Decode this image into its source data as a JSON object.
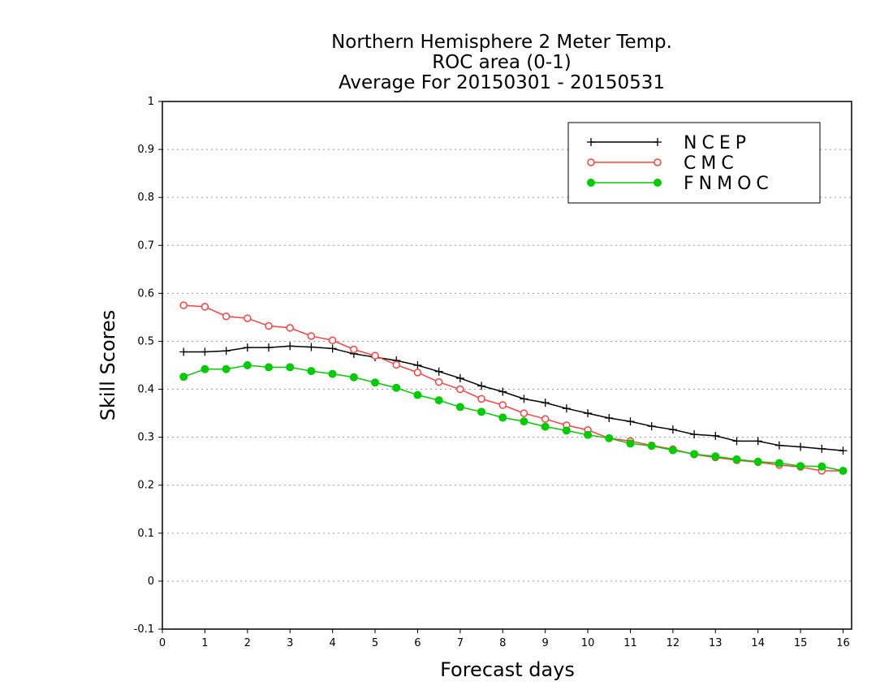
{
  "chart_data": {
    "type": "line",
    "title_lines": [
      "Northern Hemisphere 2 Meter Temp.",
      "ROC area (0-1)",
      "Average For 20150301 - 20150531"
    ],
    "xlabel": "Forecast days",
    "ylabel": "Skill Scores",
    "xlim": [
      0,
      16.2
    ],
    "ylim": [
      -0.1,
      1
    ],
    "xticks": [
      0,
      1,
      2,
      3,
      4,
      5,
      6,
      7,
      8,
      9,
      10,
      11,
      12,
      13,
      14,
      15,
      16
    ],
    "xtick_labels": [
      "0",
      "1",
      "2",
      "3",
      "4",
      "5",
      "6",
      "7",
      "8",
      "9",
      "10",
      "11",
      "12",
      "13",
      "14",
      "15",
      "16"
    ],
    "yticks": [
      -0.1,
      0,
      0.1,
      0.2,
      0.3,
      0.4,
      0.5,
      0.6,
      0.7,
      0.8,
      0.9,
      1
    ],
    "ytick_labels": [
      "-0.1",
      "0",
      "0.1",
      "0.2",
      "0.3",
      "0.4",
      "0.5",
      "0.6",
      "0.7",
      "0.8",
      "0.9",
      "1"
    ],
    "grid": "horizontal dotted",
    "legend_position": "top-right",
    "x": [
      0.5,
      1,
      1.5,
      2,
      2.5,
      3,
      3.5,
      4,
      4.5,
      5,
      5.5,
      6,
      6.5,
      7,
      7.5,
      8,
      8.5,
      9,
      9.5,
      10,
      10.5,
      11,
      11.5,
      12,
      12.5,
      13,
      13.5,
      14,
      14.5,
      15,
      15.5,
      16
    ],
    "series": [
      {
        "name": "NCEP",
        "color": "#000000",
        "marker": "plus",
        "values": [
          0.478,
          0.478,
          0.48,
          0.487,
          0.487,
          0.49,
          0.488,
          0.485,
          0.474,
          0.467,
          0.46,
          0.45,
          0.437,
          0.423,
          0.407,
          0.395,
          0.38,
          0.372,
          0.36,
          0.35,
          0.34,
          0.333,
          0.323,
          0.316,
          0.306,
          0.303,
          0.292,
          0.292,
          0.283,
          0.28,
          0.276,
          0.272
        ]
      },
      {
        "name": "CMC",
        "color": "#ff4040",
        "marker": "open-circle",
        "values": [
          0.575,
          0.572,
          0.552,
          0.548,
          0.532,
          0.528,
          0.511,
          0.502,
          0.483,
          0.47,
          0.451,
          0.435,
          0.415,
          0.4,
          0.38,
          0.367,
          0.35,
          0.338,
          0.325,
          0.315,
          0.298,
          0.292,
          0.283,
          0.275,
          0.264,
          0.258,
          0.252,
          0.248,
          0.242,
          0.238,
          0.23,
          0.23
        ]
      },
      {
        "name": "FNMOC",
        "color": "#00cc00",
        "marker": "filled-circle",
        "values": [
          0.426,
          0.442,
          0.442,
          0.45,
          0.446,
          0.446,
          0.438,
          0.432,
          0.425,
          0.414,
          0.403,
          0.388,
          0.377,
          0.363,
          0.353,
          0.341,
          0.333,
          0.322,
          0.314,
          0.305,
          0.298,
          0.287,
          0.282,
          0.273,
          0.265,
          0.26,
          0.254,
          0.249,
          0.246,
          0.24,
          0.239,
          0.23
        ]
      }
    ]
  }
}
